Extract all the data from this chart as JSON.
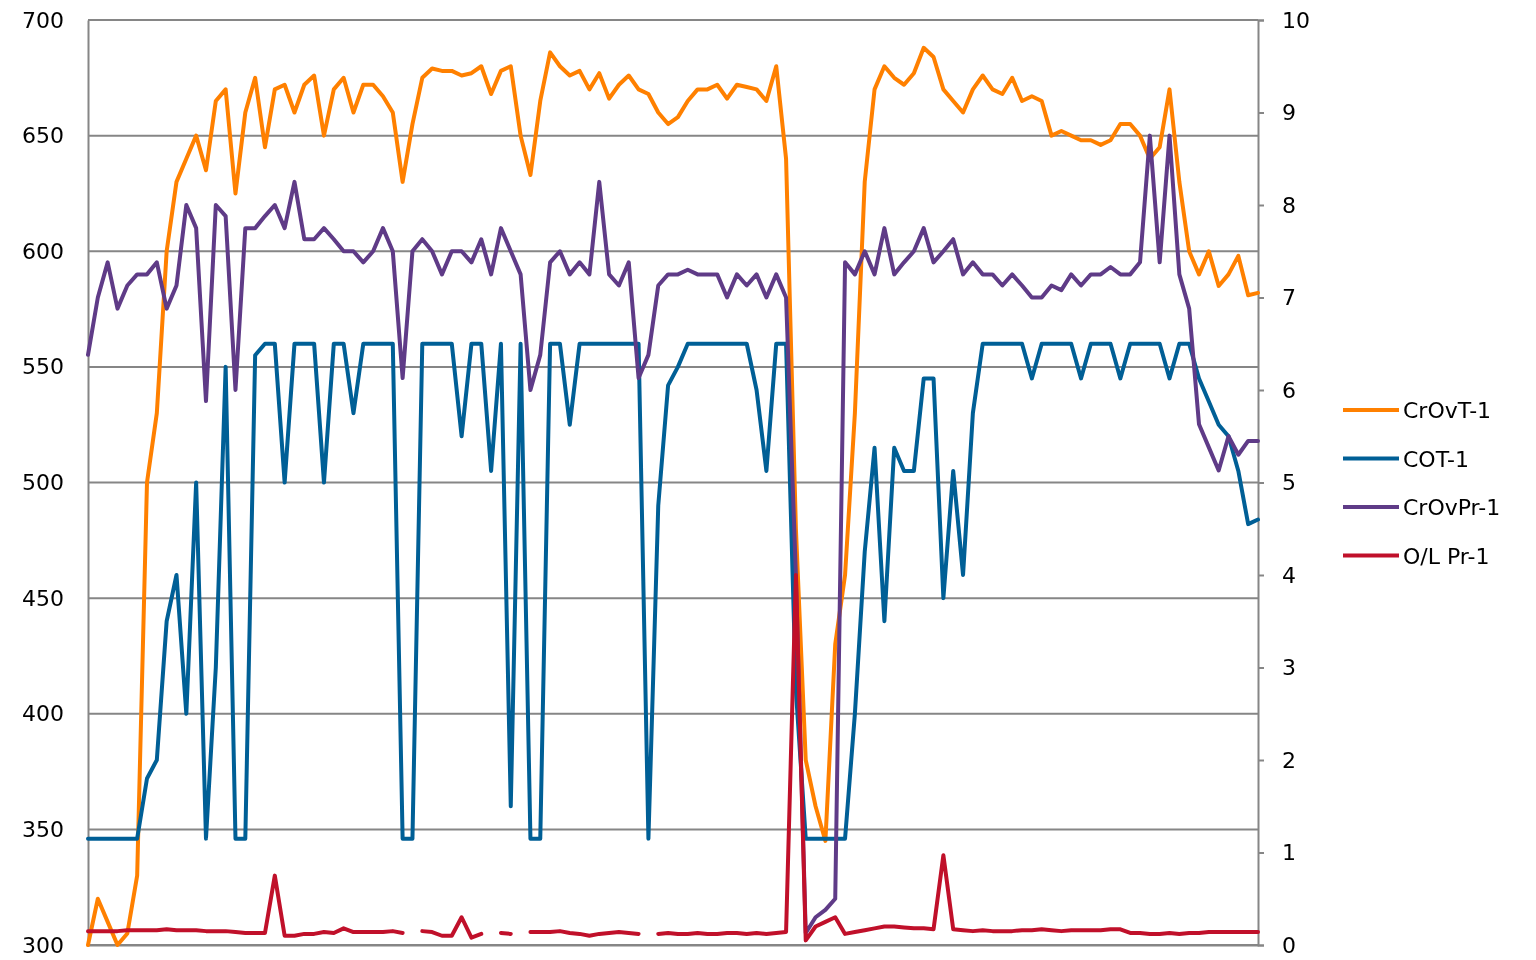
{
  "chart_data": {
    "type": "line",
    "categories": [
      null,
      null,
      null,
      null,
      null,
      null,
      null,
      null,
      null,
      null,
      null,
      null,
      null,
      null,
      null,
      null,
      null,
      null,
      null,
      null,
      null,
      null,
      null,
      null,
      null,
      null,
      null,
      null,
      null,
      null,
      null,
      null,
      null,
      null,
      null,
      null,
      null,
      null,
      null,
      null,
      null,
      null,
      null,
      null,
      null,
      null,
      null,
      null,
      null,
      null,
      null,
      null,
      null,
      null,
      null,
      null,
      null,
      null,
      null,
      null,
      null,
      null,
      null,
      null,
      null,
      null,
      null,
      null,
      null,
      null,
      null,
      null,
      null,
      null,
      null,
      null,
      null,
      null,
      null,
      null,
      null,
      null,
      null,
      null,
      null,
      null,
      null,
      null,
      null,
      null,
      null,
      null,
      null,
      null,
      null,
      null,
      null,
      null,
      null,
      null,
      null,
      null,
      null,
      null,
      null,
      null,
      null,
      null,
      null,
      null,
      null,
      null,
      null,
      null,
      null,
      null,
      null,
      null,
      null,
      null
    ],
    "series": [
      {
        "name": "CrOvT-1",
        "color": "#ff8000",
        "values": [
          300,
          320,
          310,
          300,
          305,
          330,
          500,
          530,
          600,
          630,
          640,
          650,
          635,
          665,
          670,
          625,
          660,
          675,
          645,
          670,
          672,
          660,
          672,
          676,
          650,
          670,
          675,
          660,
          672,
          672,
          667,
          660,
          630,
          655,
          675,
          679,
          678,
          678,
          676,
          677,
          680,
          668,
          678,
          680,
          650,
          633,
          665,
          686,
          680,
          676,
          678,
          670,
          677,
          666,
          672,
          676,
          670,
          668,
          660,
          655,
          658,
          665,
          670,
          670,
          672,
          666,
          672,
          671,
          670,
          665,
          680,
          640,
          480,
          380,
          360,
          345,
          430,
          460,
          530,
          630,
          670,
          680,
          675,
          672,
          677,
          688,
          684,
          670,
          665,
          660,
          670,
          676,
          670,
          668,
          675,
          665,
          667,
          665,
          650,
          652,
          650,
          648,
          648,
          646,
          648,
          655,
          655,
          650,
          640,
          645,
          670,
          630,
          600,
          590,
          600,
          585,
          590,
          598,
          581,
          582
        ]
      },
      {
        "name": "COT-1",
        "color": "#005f96",
        "values": [
          346,
          346,
          346,
          346,
          346,
          346,
          372,
          380,
          440,
          460,
          400,
          500,
          346,
          420,
          550,
          346,
          346,
          555,
          560,
          560,
          500,
          560,
          560,
          560,
          500,
          560,
          560,
          530,
          560,
          560,
          560,
          560,
          346,
          346,
          560,
          560,
          560,
          560,
          520,
          560,
          560,
          505,
          560,
          360,
          560,
          346,
          346,
          560,
          560,
          525,
          560,
          560,
          560,
          560,
          560,
          560,
          560,
          346,
          490,
          542,
          550,
          560,
          560,
          560,
          560,
          560,
          560,
          560,
          540,
          505,
          560,
          560,
          410,
          346,
          346,
          346,
          346,
          346,
          400,
          470,
          515,
          440,
          515,
          505,
          505,
          545,
          545,
          450,
          505,
          460,
          530,
          560,
          560,
          560,
          560,
          560,
          545,
          560,
          560,
          560,
          560,
          545,
          560,
          560,
          560,
          545,
          560,
          560,
          560,
          560,
          545,
          560,
          560,
          545,
          535,
          525,
          520,
          505,
          482,
          484
        ]
      },
      {
        "name": "CrOvPr-1",
        "color": "#5f3b87",
        "axis": "y2",
        "values": [
          6.38,
          7.0,
          7.38,
          6.88,
          7.13,
          7.25,
          7.25,
          7.38,
          6.88,
          7.13,
          8.0,
          7.75,
          5.88,
          8.0,
          7.88,
          6.0,
          7.75,
          7.75,
          7.88,
          8.0,
          7.75,
          8.25,
          7.63,
          7.63,
          7.75,
          7.63,
          7.5,
          7.5,
          7.38,
          7.5,
          7.75,
          7.5,
          6.13,
          7.5,
          7.63,
          7.5,
          7.25,
          7.5,
          7.5,
          7.38,
          7.63,
          7.25,
          7.75,
          7.5,
          7.25,
          6.0,
          6.38,
          7.38,
          7.5,
          7.25,
          7.38,
          7.25,
          8.25,
          7.25,
          7.13,
          7.38,
          6.13,
          6.38,
          7.13,
          7.25,
          7.25,
          7.3,
          7.25,
          7.25,
          7.25,
          7.0,
          7.25,
          7.13,
          7.25,
          7.0,
          7.25,
          7.0,
          4.0,
          0.13,
          0.3,
          0.38,
          0.5,
          7.38,
          7.25,
          7.5,
          7.25,
          7.75,
          7.25,
          7.38,
          7.5,
          7.75,
          7.38,
          7.5,
          7.63,
          7.25,
          7.38,
          7.25,
          7.25,
          7.13,
          7.25,
          7.13,
          7.0,
          7.0,
          7.13,
          7.08,
          7.25,
          7.13,
          7.25,
          7.25,
          7.33,
          7.25,
          7.25,
          7.38,
          8.75,
          7.38,
          8.75,
          7.25,
          6.88,
          5.63,
          5.38,
          5.13,
          5.5,
          5.3,
          5.45,
          5.45
        ]
      },
      {
        "name": "O/L Pr-1",
        "color": "#c0102a",
        "axis": "y2",
        "values": [
          0.15,
          0.15,
          0.15,
          0.15,
          0.16,
          0.16,
          0.16,
          0.16,
          0.17,
          0.16,
          0.16,
          0.16,
          0.15,
          0.15,
          0.15,
          0.14,
          0.13,
          0.13,
          0.13,
          0.75,
          0.1,
          0.1,
          0.12,
          0.12,
          0.14,
          0.13,
          0.18,
          0.14,
          0.14,
          0.14,
          0.14,
          0.15,
          0.13,
          null,
          0.15,
          0.14,
          0.1,
          0.1,
          0.3,
          0.08,
          0.12,
          null,
          0.13,
          0.12,
          null,
          0.14,
          0.14,
          0.14,
          0.15,
          0.13,
          0.12,
          0.1,
          0.12,
          0.13,
          0.14,
          0.13,
          0.12,
          null,
          0.12,
          0.13,
          0.12,
          0.12,
          0.13,
          0.12,
          0.12,
          0.13,
          0.13,
          0.12,
          0.13,
          0.12,
          0.13,
          0.14,
          4.0,
          0.05,
          0.2,
          0.25,
          0.3,
          0.12,
          0.14,
          0.16,
          0.18,
          0.2,
          0.2,
          0.19,
          0.18,
          0.18,
          0.17,
          0.97,
          0.17,
          0.16,
          0.15,
          0.16,
          0.15,
          0.15,
          0.15,
          0.16,
          0.16,
          0.17,
          0.16,
          0.15,
          0.16,
          0.16,
          0.16,
          0.16,
          0.17,
          0.17,
          0.13,
          0.13,
          0.12,
          0.12,
          0.13,
          0.12,
          0.13,
          0.13,
          0.14,
          0.14,
          0.14,
          0.14,
          0.14,
          0.14
        ]
      }
    ],
    "ylim": [
      300,
      700
    ],
    "yticks": [
      300,
      350,
      400,
      450,
      500,
      550,
      600,
      650,
      700
    ],
    "y2lim": [
      0,
      10
    ],
    "y2ticks": [
      0,
      1,
      2,
      3,
      4,
      5,
      6,
      7,
      8,
      9,
      10
    ],
    "grid": "y",
    "legend": "right",
    "marker": "none",
    "line_style": "solid"
  }
}
